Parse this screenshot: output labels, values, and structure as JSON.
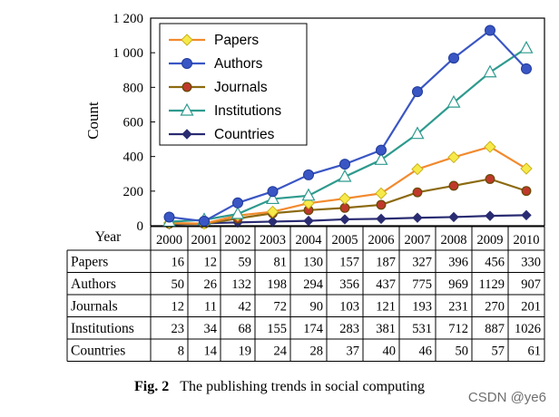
{
  "chart_data": {
    "type": "line",
    "ylabel": "Count",
    "xlabel": "Year",
    "ylim": [
      0,
      1200
    ],
    "yticks": [
      "0",
      "200",
      "400",
      "600",
      "800",
      "1 000",
      "1 200"
    ],
    "x": [
      "2000",
      "2001",
      "2002",
      "2003",
      "2004",
      "2005",
      "2006",
      "2007",
      "2008",
      "2009",
      "2010"
    ],
    "legend_position": "top-left",
    "grid": false,
    "series": [
      {
        "name": "Papers",
        "color": "#f28a2e",
        "marker": "diamond-yellow",
        "values": [
          16,
          12,
          59,
          81,
          130,
          157,
          187,
          327,
          396,
          456,
          330
        ]
      },
      {
        "name": "Authors",
        "color": "#3a56c4",
        "marker": "circle",
        "values": [
          50,
          26,
          132,
          198,
          294,
          356,
          437,
          775,
          969,
          1129,
          907
        ]
      },
      {
        "name": "Journals",
        "color": "#8c6a10",
        "marker": "circle-red",
        "values": [
          12,
          11,
          42,
          72,
          90,
          103,
          121,
          193,
          231,
          270,
          201
        ]
      },
      {
        "name": "Institutions",
        "color": "#2e9a8e",
        "marker": "triangle-open",
        "values": [
          23,
          34,
          68,
          155,
          174,
          283,
          381,
          531,
          712,
          887,
          1026
        ]
      },
      {
        "name": "Countries",
        "color": "#2a2c72",
        "marker": "diamond",
        "values": [
          8,
          14,
          19,
          24,
          28,
          37,
          40,
          46,
          50,
          57,
          61
        ]
      }
    ]
  },
  "caption": {
    "fig": "Fig. 2",
    "text": "The publishing trends in social computing"
  },
  "watermark": "CSDN @ye6"
}
